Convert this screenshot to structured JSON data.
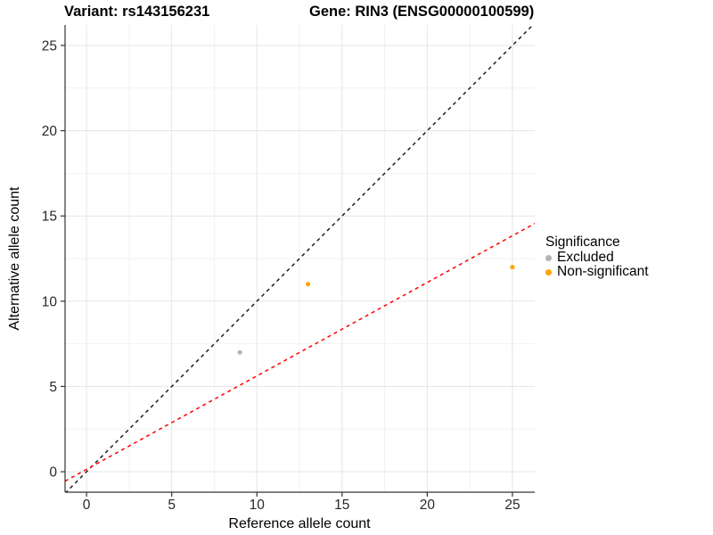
{
  "titles": {
    "variant": "Variant: rs143156231",
    "gene": "Gene: RIN3 (ENSG00000100599)"
  },
  "chart_data": {
    "type": "scatter",
    "xlabel": "Reference allele count",
    "ylabel": "Alternative allele count",
    "xlim": [
      -1.26,
      26.31
    ],
    "ylim": [
      -1.2,
      26.2
    ],
    "xticks": [
      0,
      5,
      10,
      15,
      20,
      25
    ],
    "yticks": [
      0,
      5,
      10,
      15,
      20,
      25
    ],
    "minor_ticks": [
      2.5,
      7.5,
      12.5,
      17.5,
      22.5
    ],
    "grid": true,
    "legend_position": "right",
    "series": [
      {
        "name": "Excluded",
        "color": "#b3b3b3",
        "points": [
          {
            "x": 9,
            "y": 7
          }
        ]
      },
      {
        "name": "Non-significant",
        "color": "#ffa500",
        "points": [
          {
            "x": 13,
            "y": 11
          },
          {
            "x": 25,
            "y": 12
          }
        ]
      }
    ],
    "lines": [
      {
        "name": "identity-line",
        "color": "#1c1c1c",
        "slope": 1,
        "intercept": 0,
        "dashed": true
      },
      {
        "name": "expected-ratio-line",
        "color": "#ff0000",
        "slope": 0.548,
        "intercept": 0.14,
        "dashed": true
      }
    ],
    "legend": {
      "title": "Significance",
      "entries": [
        {
          "label": "Excluded",
          "color": "#b3b3b3"
        },
        {
          "label": "Non-significant",
          "color": "#ffa500"
        }
      ]
    }
  }
}
